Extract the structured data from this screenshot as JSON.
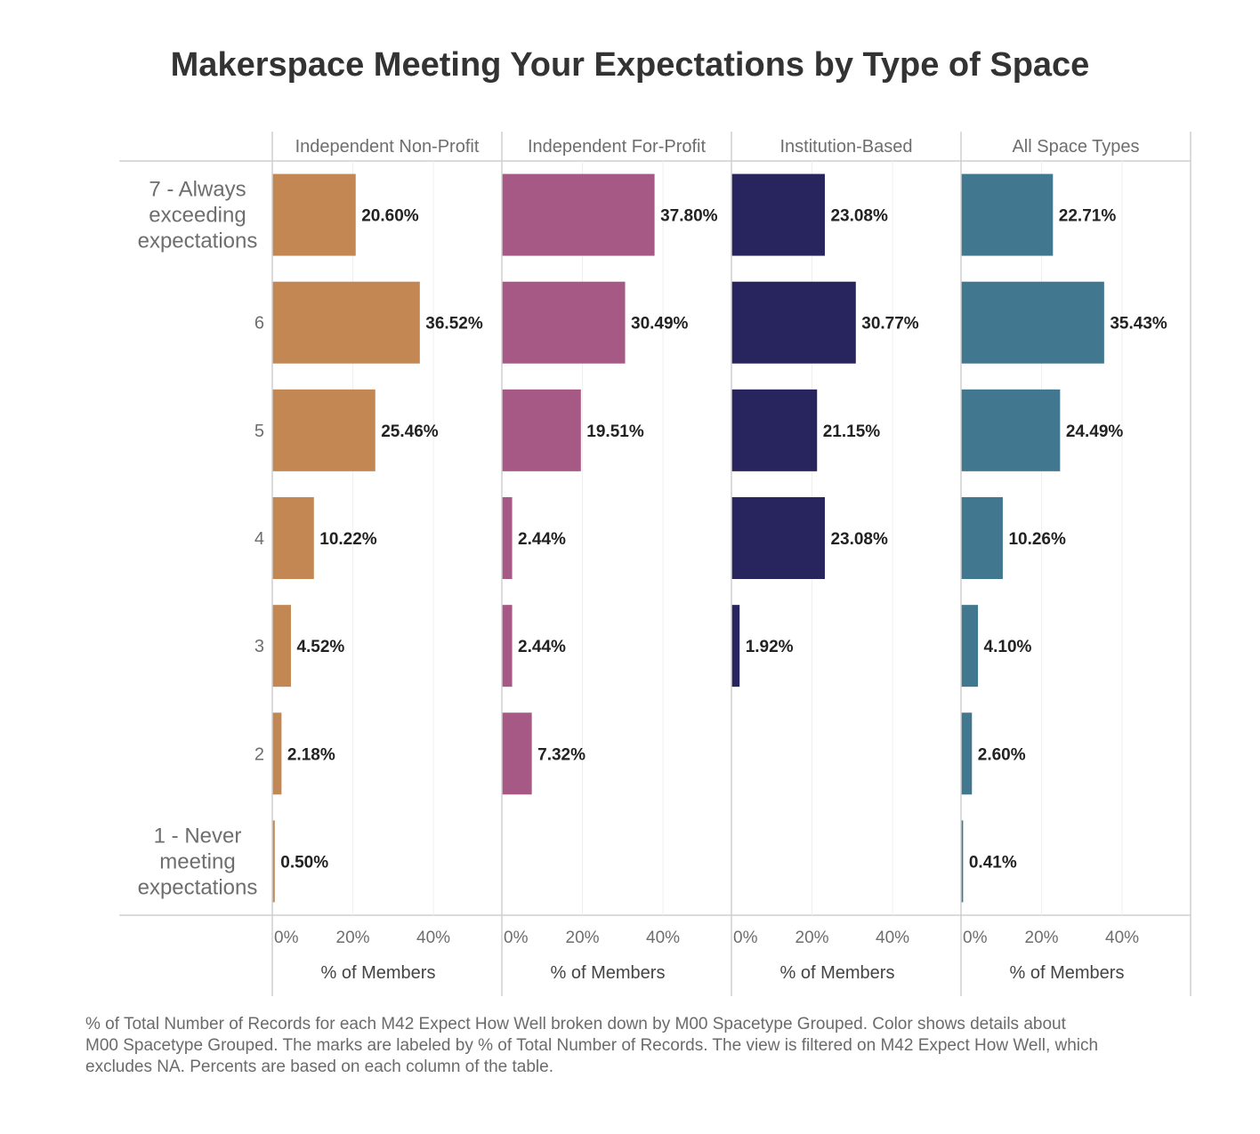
{
  "title": "Makerspace Meeting Your Expectations by Type of Space",
  "footnote": [
    "% of Total Number of Records for each M42 Expect How Well broken down by M00 Spacetype Grouped.  Color shows details about",
    "M00 Spacetype Grouped. The marks are labeled by % of Total Number of Records. The view is filtered on M42 Expect How Well, which",
    "excludes NA. Percents are based on each column of the table."
  ],
  "chart_data": {
    "type": "bar",
    "orientation": "horizontal",
    "categories": [
      [
        "7 - Always",
        "exceeding",
        "expectations"
      ],
      [
        "6"
      ],
      [
        "5"
      ],
      [
        "4"
      ],
      [
        "3"
      ],
      [
        "2"
      ],
      [
        "1 - Never",
        "meeting",
        "expectations"
      ]
    ],
    "panels": [
      {
        "name": "Independent Non-Profit",
        "color": "#C28752",
        "values": [
          20.6,
          36.52,
          25.46,
          10.22,
          4.52,
          2.18,
          0.5
        ],
        "labels": [
          "20.60%",
          "36.52%",
          "25.46%",
          "10.22%",
          "4.52%",
          "2.18%",
          "0.50%"
        ]
      },
      {
        "name": "Independent For-Profit",
        "color": "#A65984",
        "values": [
          37.8,
          30.49,
          19.51,
          2.44,
          2.44,
          7.32,
          null
        ],
        "labels": [
          "37.80%",
          "30.49%",
          "19.51%",
          "2.44%",
          "2.44%",
          "7.32%",
          ""
        ]
      },
      {
        "name": "Institution-Based",
        "color": "#27245E",
        "values": [
          23.08,
          30.77,
          21.15,
          23.08,
          1.92,
          null,
          null
        ],
        "labels": [
          "23.08%",
          "30.77%",
          "21.15%",
          "23.08%",
          "1.92%",
          "",
          ""
        ]
      },
      {
        "name": "All Space Types",
        "color": "#41788F",
        "values": [
          22.71,
          35.43,
          24.49,
          10.26,
          4.1,
          2.6,
          0.41
        ],
        "labels": [
          "22.71%",
          "35.43%",
          "24.49%",
          "10.26%",
          "4.10%",
          "2.60%",
          "0.41%"
        ]
      }
    ],
    "x_ticks": [
      "0%",
      "20%",
      "40%"
    ],
    "x_tick_values": [
      0,
      20,
      40
    ],
    "xlim": [
      0,
      57
    ],
    "xlabel": "% of Members",
    "grid": true
  }
}
